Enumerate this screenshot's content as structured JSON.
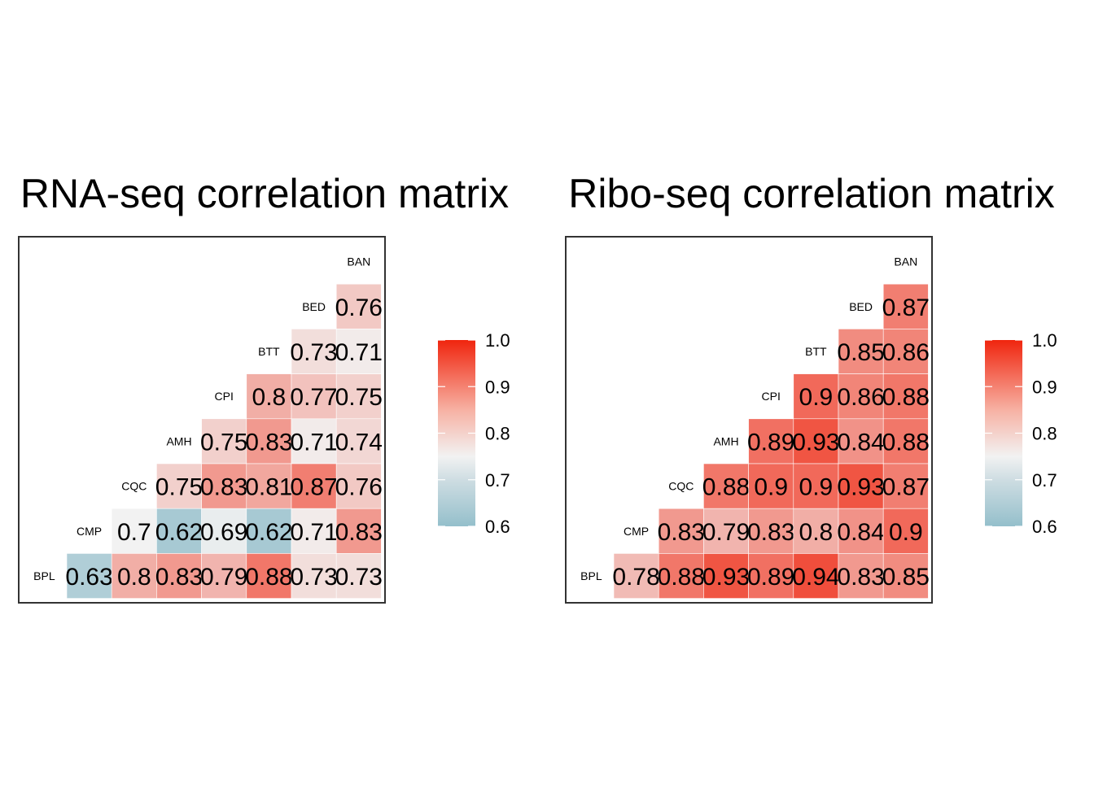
{
  "chart_data": [
    {
      "type": "heatmap",
      "title": "RNA-seq correlation matrix",
      "variables": [
        "BPL",
        "CMP",
        "CQC",
        "AMH",
        "CPI",
        "BTT",
        "BED",
        "BAN"
      ],
      "rows": [
        {
          "label": "BAN",
          "values": []
        },
        {
          "label": "BED",
          "values": [
            0.76
          ]
        },
        {
          "label": "BTT",
          "values": [
            0.73,
            0.71
          ]
        },
        {
          "label": "CPI",
          "values": [
            0.8,
            0.77,
            0.75
          ]
        },
        {
          "label": "AMH",
          "values": [
            0.75,
            0.83,
            0.71,
            0.74
          ]
        },
        {
          "label": "CQC",
          "values": [
            0.75,
            0.83,
            0.81,
            0.87,
            0.76
          ]
        },
        {
          "label": "CMP",
          "values": [
            0.7,
            0.62,
            0.69,
            0.62,
            0.71,
            0.83
          ]
        },
        {
          "label": "BPL",
          "values": [
            0.63,
            0.8,
            0.83,
            0.79,
            0.88,
            0.73,
            0.73
          ]
        }
      ],
      "legend": {
        "range": [
          0.6,
          1.0
        ],
        "ticks": [
          "1.0",
          "0.9",
          "0.8",
          "0.7",
          "0.6"
        ],
        "low_color": "#94BFCB",
        "mid_color": "#F2F2F2",
        "high_color": "#F0250E",
        "placement": "right"
      }
    },
    {
      "type": "heatmap",
      "title": "Ribo-seq correlation matrix",
      "variables": [
        "BPL",
        "CMP",
        "CQC",
        "AMH",
        "CPI",
        "BTT",
        "BED",
        "BAN"
      ],
      "rows": [
        {
          "label": "BAN",
          "values": []
        },
        {
          "label": "BED",
          "values": [
            0.87
          ]
        },
        {
          "label": "BTT",
          "values": [
            0.85,
            0.86
          ]
        },
        {
          "label": "CPI",
          "values": [
            0.9,
            0.86,
            0.88
          ]
        },
        {
          "label": "AMH",
          "values": [
            0.89,
            0.93,
            0.84,
            0.88
          ]
        },
        {
          "label": "CQC",
          "values": [
            0.88,
            0.9,
            0.9,
            0.93,
            0.87
          ]
        },
        {
          "label": "CMP",
          "values": [
            0.83,
            0.79,
            0.83,
            0.8,
            0.84,
            0.9
          ]
        },
        {
          "label": "BPL",
          "values": [
            0.78,
            0.88,
            0.93,
            0.89,
            0.94,
            0.83,
            0.85
          ]
        }
      ],
      "legend": {
        "range": [
          0.6,
          1.0
        ],
        "ticks": [
          "1.0",
          "0.9",
          "0.8",
          "0.7",
          "0.6"
        ],
        "low_color": "#94BFCB",
        "mid_color": "#F2F2F2",
        "high_color": "#F0250E",
        "placement": "right"
      }
    }
  ]
}
